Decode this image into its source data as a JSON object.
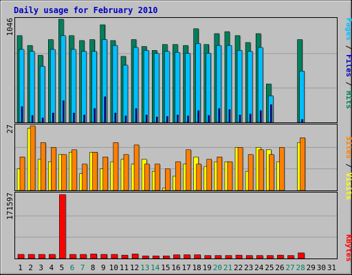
{
  "title": "Daily usage for February 2010",
  "colors": {
    "background": "#C0C0C0",
    "plot_bg": "#C0C0C0",
    "grid": "#9A9A9A",
    "hits": "#00805C",
    "files": "#00BFFF",
    "pages": "#0000C0",
    "visits": "#FFFF00",
    "sites": "#FF8000",
    "kbytes": "#FF0000",
    "title": "#0000C0",
    "weekday": "#000000",
    "weekend": "#00805C"
  },
  "chart_data": [
    {
      "type": "bar",
      "panel": "hits-files-pages",
      "categories": [
        "1",
        "2",
        "3",
        "4",
        "5",
        "6",
        "7",
        "8",
        "9",
        "10",
        "11",
        "12",
        "13",
        "14",
        "15",
        "16",
        "17",
        "18",
        "19",
        "20",
        "21",
        "22",
        "23",
        "24",
        "25",
        "26",
        "27",
        "28",
        "29",
        "30",
        "31"
      ],
      "ymax_label": "1046",
      "ylim": [
        0,
        1046
      ],
      "legend": [
        "Hits",
        "Files",
        "Pages"
      ],
      "series": [
        {
          "name": "Hits",
          "values": [
            880,
            780,
            680,
            840,
            1046,
            880,
            830,
            840,
            990,
            830,
            670,
            840,
            770,
            730,
            790,
            790,
            780,
            950,
            790,
            900,
            920,
            880,
            810,
            900,
            390,
            0,
            0,
            840,
            0,
            0,
            0
          ]
        },
        {
          "name": "Files",
          "values": [
            740,
            720,
            570,
            740,
            880,
            740,
            720,
            720,
            840,
            780,
            580,
            760,
            730,
            700,
            720,
            710,
            700,
            800,
            700,
            780,
            780,
            730,
            720,
            760,
            270,
            0,
            0,
            520,
            0,
            0,
            0
          ]
        },
        {
          "name": "Pages",
          "values": [
            160,
            70,
            45,
            95,
            220,
            95,
            75,
            140,
            260,
            95,
            65,
            140,
            75,
            55,
            60,
            75,
            65,
            120,
            70,
            140,
            130,
            75,
            85,
            120,
            180,
            0,
            0,
            30,
            0,
            0,
            0
          ]
        }
      ]
    },
    {
      "type": "bar",
      "panel": "visits-sites",
      "categories": [
        "1",
        "2",
        "3",
        "4",
        "5",
        "6",
        "7",
        "8",
        "9",
        "10",
        "11",
        "12",
        "13",
        "14",
        "15",
        "16",
        "17",
        "18",
        "19",
        "20",
        "21",
        "22",
        "23",
        "24",
        "25",
        "26",
        "27",
        "28",
        "29",
        "30",
        "31"
      ],
      "ymax_label": "27",
      "ylim": [
        0,
        27
      ],
      "legend": [
        "Visits",
        "Sites"
      ],
      "series": [
        {
          "name": "Visits",
          "values": [
            9,
            26,
            13,
            12,
            15,
            16,
            7,
            16,
            9,
            12,
            13,
            11,
            13,
            8,
            1,
            6,
            11,
            14,
            10,
            12,
            12,
            18,
            8,
            18,
            17,
            12,
            0,
            20,
            0,
            0,
            0
          ]
        },
        {
          "name": "Sites",
          "values": [
            14,
            27,
            20,
            18,
            15,
            17,
            11,
            16,
            14,
            20,
            15,
            19,
            11,
            11,
            9,
            12,
            17,
            11,
            13,
            14,
            12,
            18,
            15,
            17,
            15,
            18,
            0,
            22,
            0,
            0,
            0
          ]
        }
      ]
    },
    {
      "type": "bar",
      "panel": "kbytes",
      "categories": [
        "1",
        "2",
        "3",
        "4",
        "5",
        "6",
        "7",
        "8",
        "9",
        "10",
        "11",
        "12",
        "13",
        "14",
        "15",
        "16",
        "17",
        "18",
        "19",
        "20",
        "21",
        "22",
        "23",
        "24",
        "25",
        "26",
        "27",
        "28",
        "29",
        "30",
        "31"
      ],
      "ymax_label": "171597",
      "ylim": [
        0,
        171597
      ],
      "legend": [
        "KBytes"
      ],
      "series": [
        {
          "name": "KBytes",
          "values": [
            11000,
            11000,
            11000,
            11000,
            171597,
            11000,
            11000,
            12000,
            11000,
            11000,
            9000,
            12000,
            7000,
            7000,
            7000,
            10000,
            10000,
            10000,
            8000,
            8000,
            8000,
            9000,
            8000,
            8000,
            8000,
            9000,
            8000,
            15000,
            0,
            0,
            0
          ]
        }
      ]
    }
  ],
  "weekend_days": [
    "6",
    "7",
    "13",
    "14",
    "20",
    "21",
    "27",
    "28"
  ]
}
